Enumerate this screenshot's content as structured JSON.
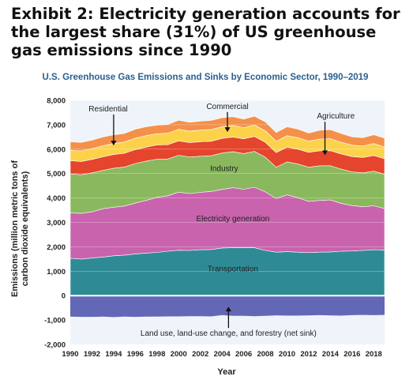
{
  "exhibit_title": "Exhibit 2: Electricity generation accounts for the largest share (31%) of US greenhouse gas emissions since 1990",
  "chart_data": {
    "type": "area",
    "title": "U.S. Greenhouse Gas Emissions and Sinks by Economic Sector, 1990–2019",
    "xlabel": "Year",
    "ylabel_lines": [
      "Emissions (million metric tons of",
      "carbon dioxide equivalents)"
    ],
    "x": [
      1990,
      1991,
      1992,
      1993,
      1994,
      1995,
      1996,
      1997,
      1998,
      1999,
      2000,
      2001,
      2002,
      2003,
      2004,
      2005,
      2006,
      2007,
      2008,
      2009,
      2010,
      2011,
      2012,
      2013,
      2014,
      2015,
      2016,
      2017,
      2018,
      2019
    ],
    "x_ticks": [
      "1990",
      "1992",
      "1994",
      "1996",
      "1998",
      "2000",
      "2002",
      "2004",
      "2006",
      "2008",
      "2010",
      "2012",
      "2014",
      "2016",
      "2018"
    ],
    "ylim": [
      -2000,
      8000
    ],
    "y_ticks": [
      "-2,000",
      "-1,000",
      "0",
      "1,000",
      "2,000",
      "3,000",
      "4,000",
      "5,000",
      "6,000",
      "7,000",
      "8,000"
    ],
    "stack_order": [
      "Transportation",
      "Electricity generation",
      "Industry",
      "Agriculture",
      "Commercial",
      "Residential"
    ],
    "series": [
      {
        "name": "Transportation",
        "color": "#2e8b96",
        "values": [
          1530,
          1500,
          1540,
          1580,
          1630,
          1660,
          1710,
          1740,
          1770,
          1820,
          1860,
          1850,
          1880,
          1890,
          1950,
          1960,
          1960,
          1960,
          1850,
          1780,
          1800,
          1780,
          1760,
          1780,
          1790,
          1820,
          1830,
          1850,
          1880,
          1870
        ]
      },
      {
        "name": "Electricity generation",
        "color": "#c963ae",
        "values": [
          1860,
          1870,
          1890,
          1980,
          1990,
          2010,
          2080,
          2160,
          2260,
          2270,
          2380,
          2330,
          2350,
          2380,
          2400,
          2460,
          2400,
          2480,
          2400,
          2200,
          2330,
          2230,
          2100,
          2120,
          2130,
          1960,
          1860,
          1790,
          1800,
          1700
        ]
      },
      {
        "name": "Industry",
        "color": "#8ab85e",
        "values": [
          1600,
          1580,
          1600,
          1570,
          1600,
          1600,
          1620,
          1610,
          1560,
          1510,
          1510,
          1500,
          1480,
          1460,
          1490,
          1480,
          1460,
          1470,
          1420,
          1280,
          1350,
          1380,
          1400,
          1420,
          1400,
          1400,
          1380,
          1390,
          1420,
          1400
        ]
      },
      {
        "name": "Agriculture",
        "color": "#e5442d",
        "values": [
          540,
          545,
          550,
          555,
          560,
          565,
          570,
          575,
          580,
          585,
          590,
          590,
          595,
          595,
          600,
          600,
          605,
          610,
          610,
          600,
          605,
          610,
          610,
          615,
          620,
          625,
          625,
          630,
          640,
          640
        ]
      },
      {
        "name": "Commercial",
        "color": "#fbd24a",
        "values": [
          430,
          435,
          440,
          450,
          450,
          460,
          470,
          470,
          460,
          470,
          480,
          470,
          475,
          480,
          480,
          470,
          460,
          470,
          470,
          460,
          470,
          470,
          460,
          480,
          490,
          480,
          470,
          470,
          490,
          480
        ]
      },
      {
        "name": "Residential",
        "color": "#f5904a",
        "values": [
          340,
          345,
          350,
          360,
          355,
          350,
          365,
          360,
          350,
          355,
          365,
          360,
          365,
          370,
          365,
          360,
          345,
          360,
          365,
          360,
          360,
          350,
          330,
          360,
          370,
          355,
          340,
          340,
          360,
          360
        ]
      },
      {
        "name": "Land use, land-use change, and forestry (net sink)",
        "color": "#6368b6",
        "values": [
          -860,
          -870,
          -870,
          -860,
          -880,
          -860,
          -870,
          -860,
          -860,
          -850,
          -850,
          -840,
          -840,
          -850,
          -800,
          -830,
          -830,
          -840,
          -830,
          -810,
          -820,
          -820,
          -810,
          -800,
          -810,
          -820,
          -800,
          -790,
          -800,
          -790
        ]
      }
    ],
    "annotations": [
      {
        "text": "Residential",
        "year": 1994,
        "value": 6150,
        "label_year": 1993.5,
        "label_value": 7550,
        "arrow": "down"
      },
      {
        "text": "Commercial",
        "year": 2004.5,
        "value": 6700,
        "label_year": 2004.5,
        "label_value": 7650,
        "arrow": "down"
      },
      {
        "text": "Agriculture",
        "year": 2013.5,
        "value": 5750,
        "label_year": 2014.5,
        "label_value": 7250,
        "arrow": "down"
      },
      {
        "text": "Industry",
        "label_year": 2004.2,
        "label_value": 5100
      },
      {
        "text": "Electricity generation",
        "label_year": 2005,
        "label_value": 3050
      },
      {
        "text": "Transportation",
        "label_year": 2005,
        "label_value": 1000
      },
      {
        "text": "Land use, land-use change, and forestry (net sink)",
        "year": 2004.6,
        "value": -450,
        "label_year": 2004.6,
        "label_value": -1650,
        "arrow": "up"
      }
    ],
    "grid": true,
    "legend": "none"
  }
}
